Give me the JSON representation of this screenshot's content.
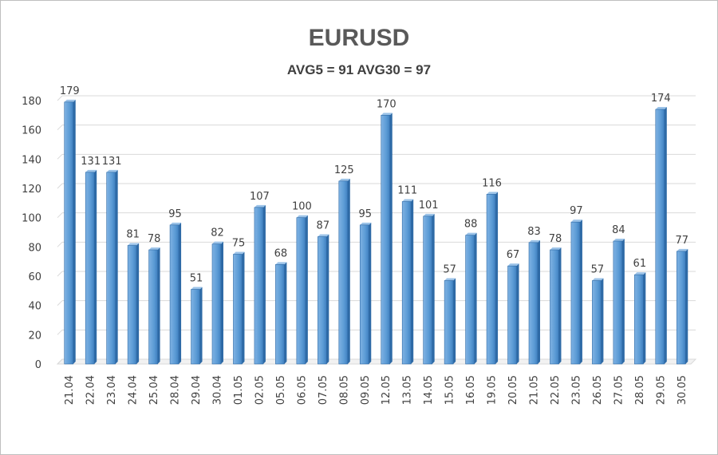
{
  "chart_data": {
    "type": "bar",
    "title": "EURUSD",
    "subtitle": "AVG5 = 91 AVG30 = 97",
    "xlabel": "",
    "ylabel": "",
    "ylim": [
      0,
      180
    ],
    "yticks": [
      0,
      20,
      40,
      60,
      80,
      100,
      120,
      140,
      160,
      180
    ],
    "grid": true,
    "legend": "none",
    "bar_color": "#5b9bd5",
    "categories": [
      "21.04",
      "22.04",
      "23.04",
      "24.04",
      "25.04",
      "28.04",
      "29.04",
      "30.04",
      "01.05",
      "02.05",
      "05.05",
      "06.05",
      "07.05",
      "08.05",
      "09.05",
      "12.05",
      "13.05",
      "14.05",
      "15.05",
      "16.05",
      "19.05",
      "20.05",
      "21.05",
      "22.05",
      "23.05",
      "26.05",
      "27.05",
      "28.05",
      "29.05",
      "30.05"
    ],
    "values": [
      179,
      131,
      131,
      81,
      78,
      95,
      51,
      82,
      75,
      107,
      68,
      100,
      87,
      125,
      95,
      170,
      111,
      101,
      57,
      88,
      116,
      67,
      83,
      78,
      97,
      57,
      84,
      61,
      174,
      77
    ]
  }
}
